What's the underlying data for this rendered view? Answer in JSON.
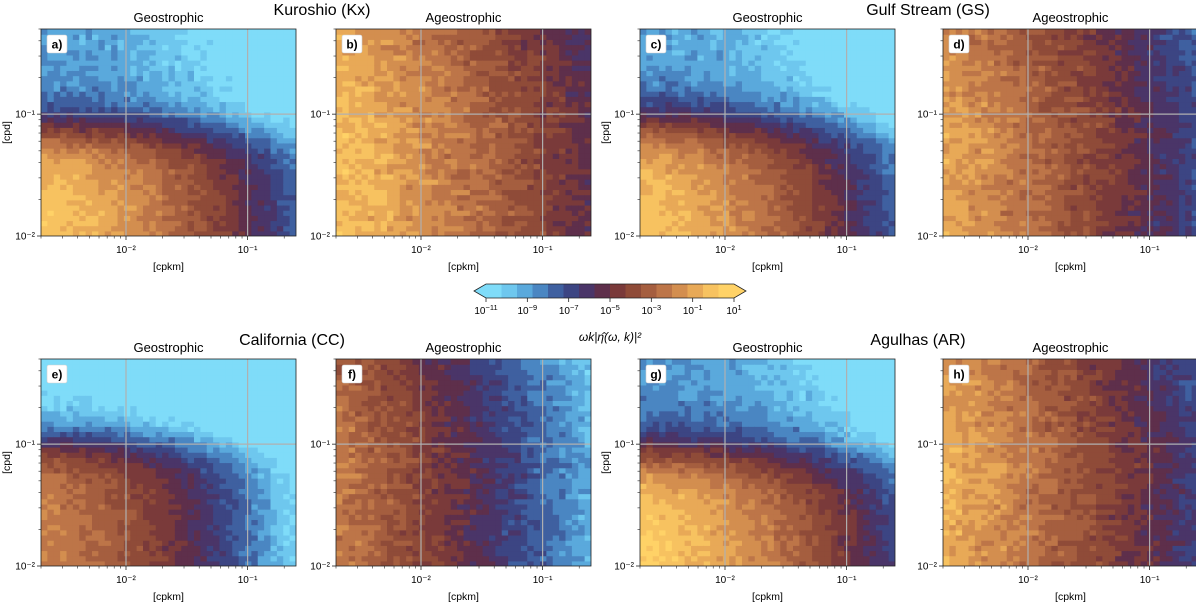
{
  "colors": {
    "scale": [
      "#7fdcf9",
      "#6ec7ee",
      "#5aa9dc",
      "#4a86c2",
      "#3f60a0",
      "#3c4583",
      "#4a3568",
      "#5e2f4b",
      "#7a3a3a",
      "#8f4b38",
      "#a55e3f",
      "#bd7548",
      "#d38e4f",
      "#e8a957",
      "#f7c260",
      "#ffd267"
    ],
    "grid": "#b0b0b0"
  },
  "figure": {
    "regions": [
      {
        "title": "Kuroshio (Kx)"
      },
      {
        "title": "Gulf Stream (GS)"
      },
      {
        "title": "California (CC)"
      },
      {
        "title": "Agulhas (AR)"
      }
    ],
    "colorbar": {
      "ticks": [
        {
          "base": "10",
          "exp": "−11"
        },
        {
          "base": "10",
          "exp": "−9"
        },
        {
          "base": "10",
          "exp": "−7"
        },
        {
          "base": "10",
          "exp": "−5"
        },
        {
          "base": "10",
          "exp": "−3"
        },
        {
          "base": "10",
          "exp": "−1"
        },
        {
          "base": "10",
          "exp": "1"
        }
      ],
      "label": "ωk|η̂(ω, k)|²"
    }
  },
  "chart_data": [
    {
      "type": "heatmap",
      "panel": "a)",
      "region": "Kuroshio (Kx)",
      "title": "Geostrophic",
      "xlabel": "[cpkm]",
      "ylabel": "[cpd]",
      "xscale": "log",
      "yscale": "log",
      "xlim": [
        0.002,
        0.25
      ],
      "ylim": [
        0.01,
        0.5
      ],
      "xticks": [
        "10⁻²",
        "10⁻¹"
      ],
      "yticks": [
        "10⁻²",
        "10⁻¹"
      ],
      "contour_levels_log10": [
        -11,
        -10,
        -9,
        -8,
        -7,
        -6,
        -5,
        -4,
        -3,
        -2,
        -1,
        0,
        1
      ],
      "regime": "geo",
      "hi": 0.93,
      "ym": 0.52,
      "steep": 1.5,
      "kfall": 1.2
    },
    {
      "type": "heatmap",
      "panel": "b)",
      "region": "Kuroshio (Kx)",
      "title": "Ageostrophic",
      "xlabel": "[cpkm]",
      "ylabel": "",
      "xscale": "log",
      "yscale": "log",
      "xlim": [
        0.002,
        0.25
      ],
      "ylim": [
        0.01,
        0.5
      ],
      "xticks": [
        "10⁻²",
        "10⁻¹"
      ],
      "yticks": [
        "10⁻²",
        "10⁻¹"
      ],
      "contour_levels_log10": [
        -11,
        -10,
        -9,
        -8,
        -7,
        -6,
        -5,
        -4,
        -3,
        -2,
        -1,
        0,
        1
      ],
      "regime": "ageo",
      "hi": 0.88,
      "ym": 0.5,
      "steep": 0.8,
      "kfall": 0.9
    },
    {
      "type": "heatmap",
      "panel": "c)",
      "region": "Gulf Stream (GS)",
      "title": "Geostrophic",
      "xlabel": "[cpkm]",
      "ylabel": "[cpd]",
      "xscale": "log",
      "yscale": "log",
      "xlim": [
        0.002,
        0.25
      ],
      "ylim": [
        0.01,
        0.5
      ],
      "xticks": [
        "10⁻²",
        "10⁻¹"
      ],
      "yticks": [
        "10⁻²",
        "10⁻¹"
      ],
      "contour_levels_log10": [
        -11,
        -10,
        -9,
        -8,
        -7,
        -6,
        -5,
        -4,
        -3,
        -2,
        -1,
        0,
        1
      ],
      "regime": "geo",
      "hi": 0.92,
      "ym": 0.55,
      "steep": 1.4,
      "kfall": 1.2
    },
    {
      "type": "heatmap",
      "panel": "d)",
      "region": "Gulf Stream (GS)",
      "title": "Ageostrophic",
      "xlabel": "[cpkm]",
      "ylabel": "",
      "xscale": "log",
      "yscale": "log",
      "xlim": [
        0.002,
        0.25
      ],
      "ylim": [
        0.01,
        0.5
      ],
      "xticks": [
        "10⁻²",
        "10⁻¹"
      ],
      "yticks": [
        "10⁻²",
        "10⁻¹"
      ],
      "contour_levels_log10": [
        -11,
        -10,
        -9,
        -8,
        -7,
        -6,
        -5,
        -4,
        -3,
        -2,
        -1,
        0,
        1
      ],
      "regime": "ageo",
      "hi": 0.82,
      "ym": 0.5,
      "steep": 0.8,
      "kfall": 1.1
    },
    {
      "type": "heatmap",
      "panel": "e)",
      "region": "California (CC)",
      "title": "Geostrophic",
      "xlabel": "[cpkm]",
      "ylabel": "[cpd]",
      "xscale": "log",
      "yscale": "log",
      "xlim": [
        0.002,
        0.25
      ],
      "ylim": [
        0.01,
        0.5
      ],
      "xticks": [
        "10⁻²",
        "10⁻¹"
      ],
      "yticks": [
        "10⁻²",
        "10⁻¹"
      ],
      "contour_levels_log10": [
        -11,
        -10,
        -9,
        -8,
        -7,
        -6,
        -5,
        -4,
        -3,
        -2,
        -1,
        0,
        1
      ],
      "regime": "geo",
      "hi": 0.76,
      "ym": 0.62,
      "steep": 1.6,
      "kfall": 1.4
    },
    {
      "type": "heatmap",
      "panel": "f)",
      "region": "California (CC)",
      "title": "Ageostrophic",
      "xlabel": "[cpkm]",
      "ylabel": "",
      "xscale": "log",
      "yscale": "log",
      "xlim": [
        0.002,
        0.25
      ],
      "ylim": [
        0.01,
        0.5
      ],
      "xticks": [
        "10⁻²",
        "10⁻¹"
      ],
      "yticks": [
        "10⁻²",
        "10⁻¹"
      ],
      "contour_levels_log10": [
        -11,
        -10,
        -9,
        -8,
        -7,
        -6,
        -5,
        -4,
        -3,
        -2,
        -1,
        0,
        1
      ],
      "regime": "ageo",
      "hi": 0.72,
      "ym": 0.5,
      "steep": 0.7,
      "kfall": 1.4
    },
    {
      "type": "heatmap",
      "panel": "g)",
      "region": "Agulhas (AR)",
      "title": "Geostrophic",
      "xlabel": "[cpkm]",
      "ylabel": "[cpd]",
      "xscale": "log",
      "yscale": "log",
      "xlim": [
        0.002,
        0.25
      ],
      "ylim": [
        0.01,
        0.5
      ],
      "xticks": [
        "10⁻²",
        "10⁻¹"
      ],
      "yticks": [
        "10⁻²",
        "10⁻¹"
      ],
      "contour_levels_log10": [
        -11,
        -10,
        -9,
        -8,
        -7,
        -6,
        -5,
        -4,
        -3,
        -2,
        -1,
        0,
        1
      ],
      "regime": "geo",
      "hi": 0.95,
      "ym": 0.55,
      "steep": 1.4,
      "kfall": 1.1
    },
    {
      "type": "heatmap",
      "panel": "h)",
      "region": "Agulhas (AR)",
      "title": "Ageostrophic",
      "xlabel": "[cpkm]",
      "ylabel": "",
      "xscale": "log",
      "yscale": "log",
      "xlim": [
        0.002,
        0.25
      ],
      "ylim": [
        0.01,
        0.5
      ],
      "xticks": [
        "10⁻²",
        "10⁻¹"
      ],
      "yticks": [
        "10⁻²",
        "10⁻¹"
      ],
      "contour_levels_log10": [
        -11,
        -10,
        -9,
        -8,
        -7,
        -6,
        -5,
        -4,
        -3,
        -2,
        -1,
        0,
        1
      ],
      "regime": "ageo",
      "hi": 0.84,
      "ym": 0.5,
      "steep": 0.8,
      "kfall": 1.1
    }
  ]
}
